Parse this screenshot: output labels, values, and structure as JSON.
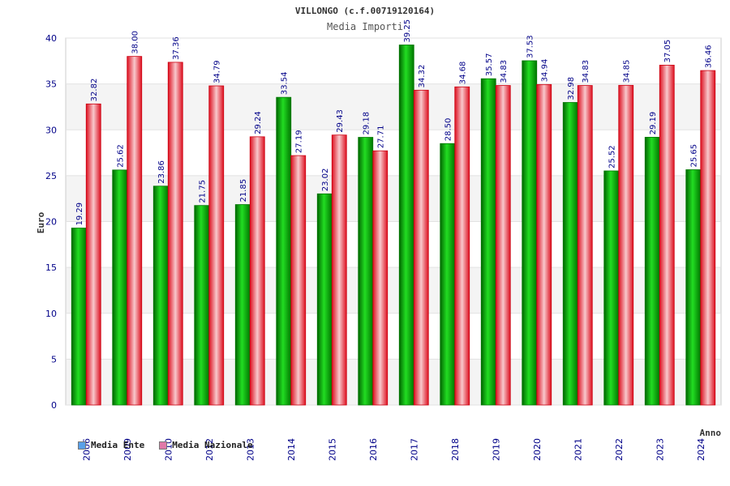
{
  "chart_data": {
    "type": "bar",
    "title": "VILLONGO (c.f.00719120164)",
    "subtitle": "Media Importi",
    "xlabel": "Anno",
    "ylabel": "Euro",
    "ylim": [
      0,
      40
    ],
    "yticks": [
      0,
      5,
      10,
      15,
      20,
      25,
      30,
      35,
      40
    ],
    "grid": true,
    "legend_position": "bottom-left",
    "categories": [
      "2006",
      "2009",
      "2010",
      "2012",
      "2013",
      "2014",
      "2015",
      "2016",
      "2017",
      "2018",
      "2019",
      "2020",
      "2021",
      "2022",
      "2023",
      "2024"
    ],
    "series": [
      {
        "name": "Media Ente",
        "color": "#00b000",
        "legend_color": "#5aa0e8",
        "values": [
          19.29,
          25.62,
          23.86,
          21.75,
          21.85,
          33.54,
          23.02,
          29.18,
          39.25,
          28.5,
          35.57,
          37.53,
          32.98,
          25.52,
          29.19,
          25.65
        ]
      },
      {
        "name": "Media Nazionale",
        "color": "#e8101a",
        "legend_color": "#e07aa8",
        "values": [
          32.82,
          38.0,
          37.36,
          34.79,
          29.24,
          27.19,
          29.43,
          27.71,
          34.32,
          34.68,
          34.83,
          34.94,
          34.83,
          34.85,
          37.05,
          36.46
        ]
      }
    ]
  }
}
